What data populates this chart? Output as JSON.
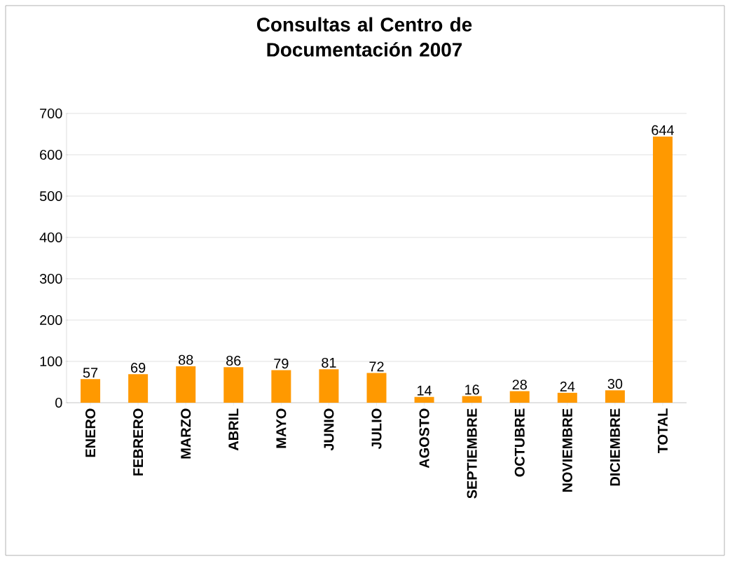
{
  "chart_data": {
    "type": "bar",
    "title": "Consultas al Centro de Documentación 2007",
    "categories": [
      "ENERO",
      "FEBRERO",
      "MARZO",
      "ABRIL",
      "MAYO",
      "JUNIO",
      "JULIO",
      "AGOSTO",
      "SEPTIEMBRE",
      "OCTUBRE",
      "NOVIEMBRE",
      "DICIEMBRE",
      "TOTAL"
    ],
    "values": [
      57,
      69,
      88,
      86,
      79,
      81,
      72,
      14,
      16,
      28,
      24,
      30,
      644
    ],
    "color": "#ff9900",
    "ylim": [
      0,
      700
    ],
    "yticks": [
      0,
      100,
      200,
      300,
      400,
      500,
      600,
      700
    ],
    "grid": "y",
    "data_labels": true
  }
}
